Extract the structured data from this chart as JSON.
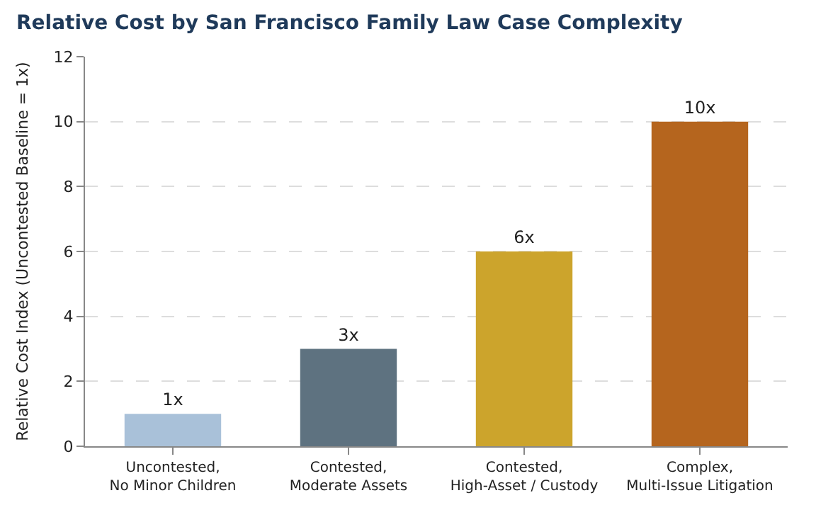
{
  "chart_data": {
    "type": "bar",
    "title": "Relative Cost by San Francisco Family Law Case Complexity",
    "ylabel": "Relative Cost Index (Uncontested Baseline = 1x)",
    "categories": [
      "Uncontested,\nNo Minor Children",
      "Contested,\nModerate Assets",
      "Contested,\nHigh-Asset / Custody",
      "Complex,\nMulti-Issue Litigation"
    ],
    "values": [
      1,
      3,
      6,
      10
    ],
    "colors": [
      "#a9c1d9",
      "#5e7280",
      "#cca42c",
      "#b5651e"
    ],
    "value_labels": [
      "1x",
      "3x",
      "6x",
      "10x"
    ],
    "ylim": [
      0,
      12
    ],
    "yticks": [
      0,
      2,
      4,
      6,
      8,
      10,
      12
    ],
    "grid": "y"
  }
}
